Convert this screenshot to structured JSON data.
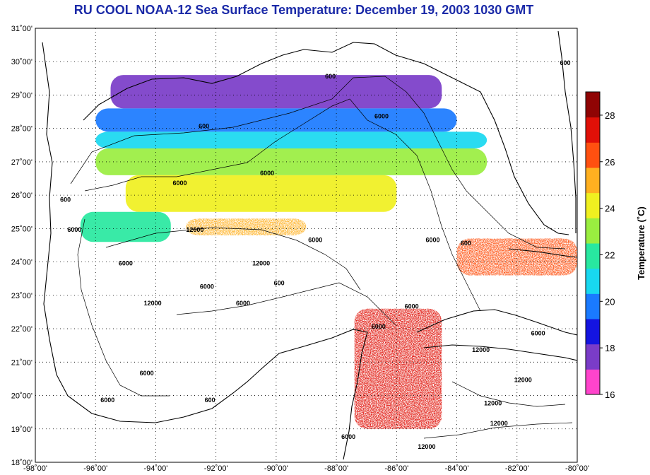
{
  "title": "RU COOL  NOAA-12  Sea Surface Temperature:  December 19, 2003 1030 GMT",
  "latitude_ticks": [
    {
      "value": 31,
      "label": "31˚00'"
    },
    {
      "value": 30,
      "label": "30˚00'"
    },
    {
      "value": 29,
      "label": "29˚00'"
    },
    {
      "value": 28,
      "label": "28˚00'"
    },
    {
      "value": 27,
      "label": "27˚00'"
    },
    {
      "value": 26,
      "label": "26˚00'"
    },
    {
      "value": 25,
      "label": "25˚00'"
    },
    {
      "value": 24,
      "label": "24˚00'"
    },
    {
      "value": 23,
      "label": "23˚00'"
    },
    {
      "value": 22,
      "label": "22˚00'"
    },
    {
      "value": 21,
      "label": "21˚00'"
    },
    {
      "value": 20,
      "label": "20˚00'"
    },
    {
      "value": 19,
      "label": "19˚00'"
    },
    {
      "value": 18,
      "label": "18˚00'"
    }
  ],
  "longitude_ticks": [
    {
      "value": -98,
      "label": "-98˚00'"
    },
    {
      "value": -96,
      "label": "-96˚00'"
    },
    {
      "value": -94,
      "label": "-94˚00'"
    },
    {
      "value": -92,
      "label": "-92˚00'"
    },
    {
      "value": -90,
      "label": "-90˚00'"
    },
    {
      "value": -88,
      "label": "-88˚00'"
    },
    {
      "value": -86,
      "label": "-86˚00'"
    },
    {
      "value": -84,
      "label": "-84˚00'"
    },
    {
      "value": -82,
      "label": "-82˚00'"
    },
    {
      "value": -80,
      "label": "-80˚00'"
    }
  ],
  "map_extent": {
    "lon_min": -98,
    "lon_max": -80,
    "lat_min": 18,
    "lat_max": 31
  },
  "colorbar": {
    "label": "Temperature (˚C)",
    "min": 16,
    "max": 29,
    "ticks": [
      "16",
      "18",
      "20",
      "22",
      "24",
      "26",
      "28"
    ],
    "tick_values": [
      16,
      18,
      20,
      22,
      24,
      26,
      28
    ],
    "colors": [
      "#ff44cc",
      "#7a3cc8",
      "#1414e0",
      "#1a7aff",
      "#18d8f0",
      "#28e8a0",
      "#9aee40",
      "#f0f020",
      "#ffb020",
      "#ff5010",
      "#e01008",
      "#900404"
    ]
  },
  "sst_regions": [
    {
      "name": "northern-shelf-cold",
      "lat_top": 29.6,
      "lat_bottom": 28.6,
      "lon_left": -95.5,
      "lon_right": -84.5,
      "temp": 17
    },
    {
      "name": "shelf-blue",
      "lat_top": 28.6,
      "lat_bottom": 27.9,
      "lon_left": -96,
      "lon_right": -84,
      "temp": 19.5
    },
    {
      "name": "shelf-cyan",
      "lat_top": 27.9,
      "lat_bottom": 27.4,
      "lon_left": -96,
      "lon_right": -83,
      "temp": 21
    },
    {
      "name": "central-green",
      "lat_top": 27.4,
      "lat_bottom": 26.6,
      "lon_left": -96,
      "lon_right": -83,
      "temp": 23
    },
    {
      "name": "central-yellow",
      "lat_top": 26.6,
      "lat_bottom": 25.5,
      "lon_left": -95,
      "lon_right": -86,
      "temp": 24.3
    },
    {
      "name": "loop-orange",
      "lat_top": 25.3,
      "lat_bottom": 24.8,
      "lon_left": -93,
      "lon_right": -89,
      "temp": 25.8
    },
    {
      "name": "west-cyan",
      "lat_top": 25.5,
      "lat_bottom": 24.6,
      "lon_left": -96.5,
      "lon_right": -93.5,
      "temp": 21.5
    },
    {
      "name": "yucatan-warm",
      "lat_top": 22.6,
      "lat_bottom": 19.0,
      "lon_left": -87.4,
      "lon_right": -84.5,
      "temp": 27.5
    },
    {
      "name": "florida-straits",
      "lat_top": 24.7,
      "lat_bottom": 23.6,
      "lon_left": -84,
      "lon_right": -80,
      "temp": 26.3
    }
  ],
  "contour_labels": [
    {
      "text": "600",
      "lat": 28.0,
      "lon": -92.4
    },
    {
      "text": "600",
      "lat": 29.5,
      "lon": -88.2
    },
    {
      "text": "6000",
      "lat": 28.3,
      "lon": -86.5
    },
    {
      "text": "6000",
      "lat": 26.6,
      "lon": -90.3
    },
    {
      "text": "6000",
      "lat": 26.3,
      "lon": -93.2
    },
    {
      "text": "600",
      "lat": 25.8,
      "lon": -97.0
    },
    {
      "text": "6000",
      "lat": 24.9,
      "lon": -96.7
    },
    {
      "text": "12000",
      "lat": 24.9,
      "lon": -92.7
    },
    {
      "text": "6000",
      "lat": 24.6,
      "lon": -88.7
    },
    {
      "text": "6000",
      "lat": 23.9,
      "lon": -95.0
    },
    {
      "text": "12000",
      "lat": 23.9,
      "lon": -90.5
    },
    {
      "text": "6000",
      "lat": 23.2,
      "lon": -92.3
    },
    {
      "text": "600",
      "lat": 23.3,
      "lon": -89.9
    },
    {
      "text": "12000",
      "lat": 22.7,
      "lon": -94.1
    },
    {
      "text": "6000",
      "lat": 22.7,
      "lon": -91.1
    },
    {
      "text": "6000",
      "lat": 24.6,
      "lon": -84.8
    },
    {
      "text": "600",
      "lat": 24.5,
      "lon": -83.7
    },
    {
      "text": "6000",
      "lat": 22.6,
      "lon": -85.5
    },
    {
      "text": "6000",
      "lat": 22.0,
      "lon": -86.6
    },
    {
      "text": "12000",
      "lat": 21.3,
      "lon": -83.2
    },
    {
      "text": "6000",
      "lat": 21.8,
      "lon": -81.3
    },
    {
      "text": "600",
      "lat": 29.9,
      "lon": -80.4
    },
    {
      "text": "6000",
      "lat": 20.6,
      "lon": -94.3
    },
    {
      "text": "6000",
      "lat": 19.8,
      "lon": -95.6
    },
    {
      "text": "600",
      "lat": 19.8,
      "lon": -92.2
    },
    {
      "text": "12000",
      "lat": 20.4,
      "lon": -81.8
    },
    {
      "text": "12000",
      "lat": 19.7,
      "lon": -82.8
    },
    {
      "text": "12000",
      "lat": 19.1,
      "lon": -82.6
    },
    {
      "text": "12000",
      "lat": 18.4,
      "lon": -85.0
    },
    {
      "text": "6000",
      "lat": 18.7,
      "lon": -87.6
    }
  ]
}
